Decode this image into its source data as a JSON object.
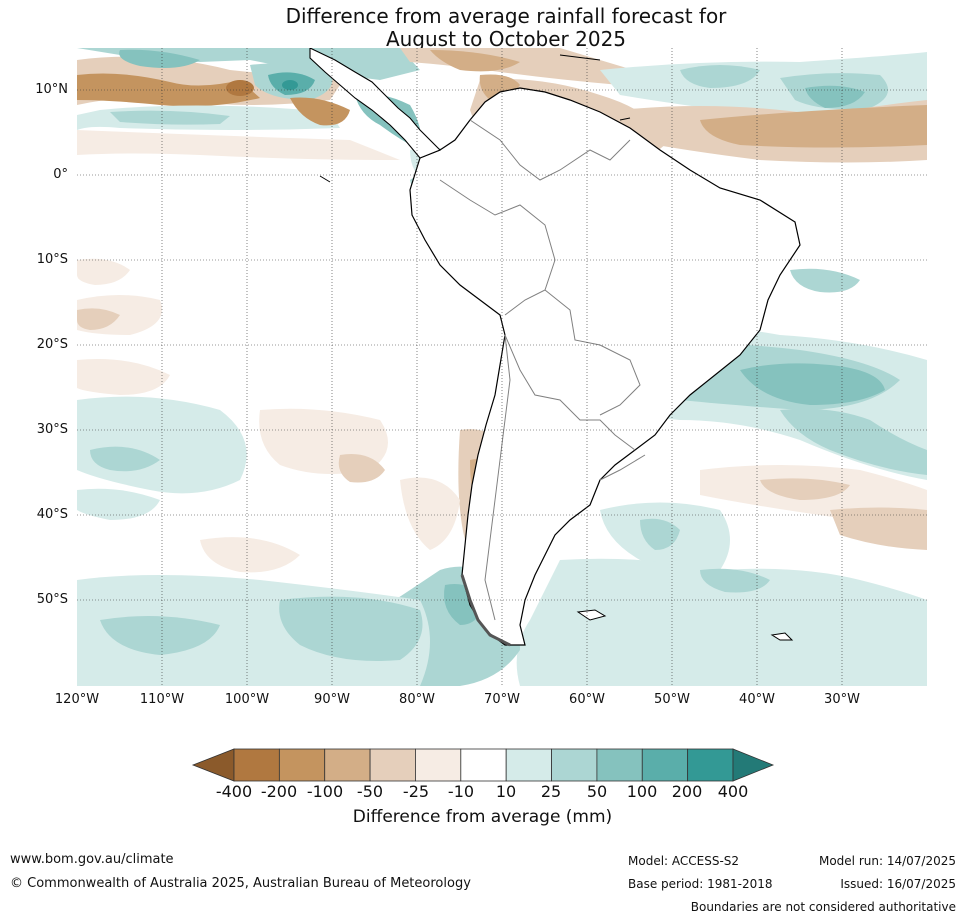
{
  "title_line1": "Difference from average rainfall forecast for",
  "title_line2": "August to October 2025",
  "lat_labels": [
    "10°N",
    "0°",
    "10°S",
    "20°S",
    "30°S",
    "40°S",
    "50°S"
  ],
  "lon_labels": [
    "120°W",
    "110°W",
    "100°W",
    "90°W",
    "80°W",
    "70°W",
    "60°W",
    "50°W",
    "40°W",
    "30°W"
  ],
  "colorbar": {
    "ticks": [
      "-400",
      "-200",
      "-100",
      "-50",
      "-25",
      "-10",
      "10",
      "25",
      "50",
      "100",
      "200",
      "400"
    ],
    "colors": [
      "#8b5a2b",
      "#b07840",
      "#c4945f",
      "#d3ae87",
      "#e5cfbb",
      "#f6ece4",
      "#ffffff",
      "#d5ebe9",
      "#acd6d3",
      "#85c2be",
      "#5aaeaa",
      "#339995",
      "#237a77"
    ],
    "label": "Difference from average (mm)"
  },
  "footer": {
    "website": "www.bom.gov.au/climate",
    "copyright": "© Commonwealth of Australia 2025, Australian Bureau of Meteorology",
    "model": "Model: ACCESS-S2",
    "base_period": "Base period: 1981-2018",
    "model_run": "Model run: 14/07/2025",
    "issued": "Issued: 16/07/2025",
    "disclaimer": "Boundaries are not considered authoritative"
  },
  "land_color": "#ffffff",
  "coast_color": "#000000",
  "border_color": "#808080"
}
